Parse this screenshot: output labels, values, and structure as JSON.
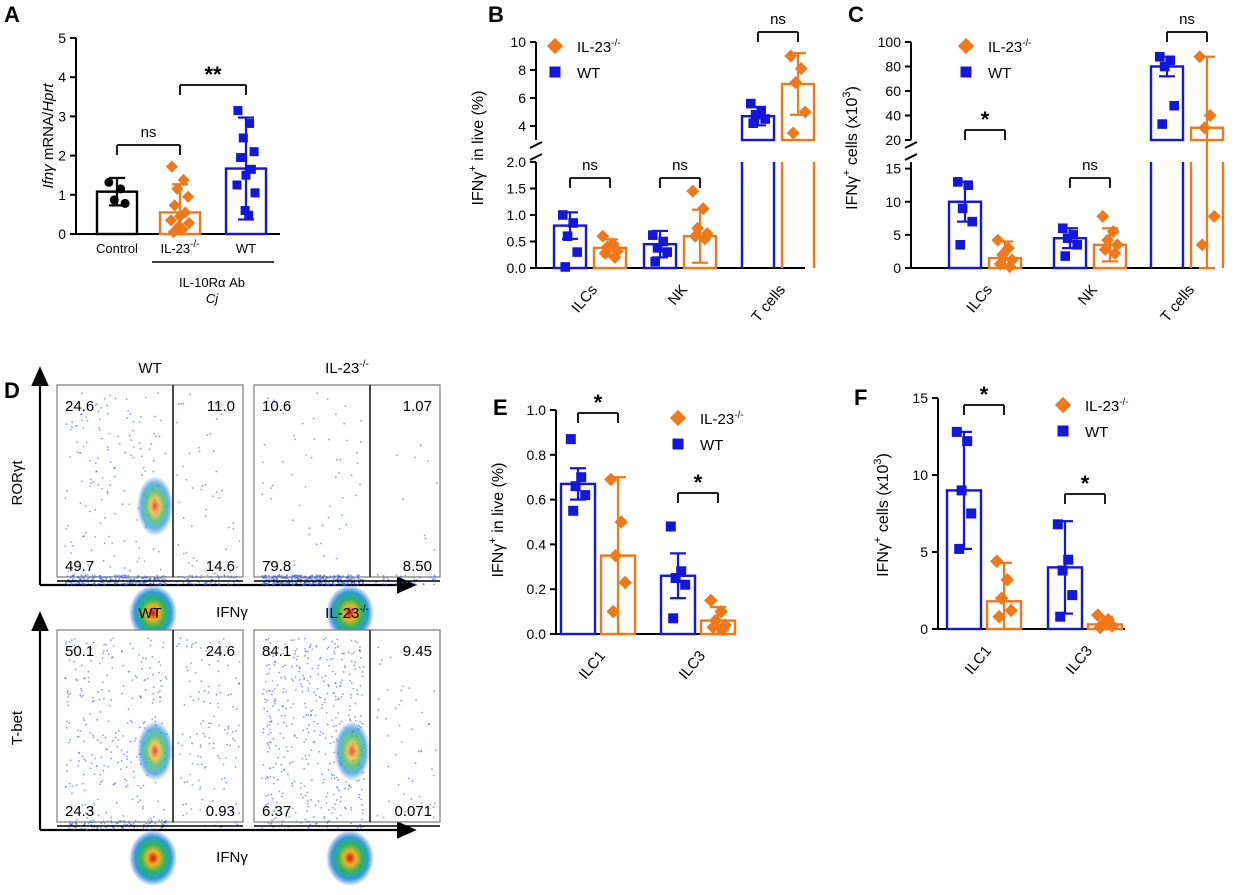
{
  "colors": {
    "wt": "#1515e0",
    "il23": "#f07818",
    "control": "#000000",
    "axis": "#000000",
    "gate": "#000000"
  },
  "symbols": {
    "il23": "diamond-icon",
    "wt": "square-icon",
    "control": "circle-icon"
  },
  "legend": {
    "il23": "IL-23",
    "il23_sup": "-/-",
    "wt": "WT"
  },
  "chart_data": [
    {
      "id": "A",
      "type": "bar",
      "panel_label": "A",
      "ylabel_italic1": "Ifnγ",
      "ylabel_mid": " mRNA/",
      "ylabel_italic2": "Hprt",
      "ylim": [
        0,
        5
      ],
      "yticks": [
        0,
        1,
        2,
        3,
        4,
        5
      ],
      "categories": [
        "Control",
        "IL-23",
        "WT"
      ],
      "category_sup": [
        "",
        "-/-",
        ""
      ],
      "group_label": "IL-10Rα Ab",
      "group_label2": "Cj",
      "bars": [
        {
          "name": "Control",
          "mean": 1.08,
          "sd": 0.35,
          "points": [
            1.32,
            1.15,
            0.87,
            0.78
          ]
        },
        {
          "name": "IL-23-/-",
          "mean": 0.55,
          "sd": 0.72,
          "points": [
            1.72,
            1.38,
            1.15,
            0.95,
            0.73,
            0.55,
            0.45,
            0.35,
            0.28,
            0.2,
            0.12,
            0.05
          ]
        },
        {
          "name": "WT",
          "mean": 1.67,
          "sd": 1.3,
          "points": [
            3.15,
            2.82,
            2.45,
            2.1,
            1.95,
            1.65,
            1.5,
            1.25,
            1.05,
            0.6,
            0.48
          ]
        }
      ],
      "significance": [
        {
          "from": 0,
          "to": 1,
          "label": "ns"
        },
        {
          "from": 1,
          "to": 2,
          "label": "**"
        }
      ]
    },
    {
      "id": "B",
      "type": "bar",
      "panel_label": "B",
      "ylabel": "IFNγ",
      "ylabel_sup": "+",
      "ylabel_rest": " in live (%)",
      "split_axis": true,
      "ylim_lower": [
        0,
        2
      ],
      "yticks_lower": [
        "0.0",
        "0.5",
        "1.0",
        "1.5",
        "2.0"
      ],
      "ylim_upper": [
        3,
        10
      ],
      "yticks_upper": [
        "4",
        "6",
        "8",
        "10"
      ],
      "categories": [
        "ILCs",
        "NK",
        "T cells"
      ],
      "series": [
        {
          "name": "WT",
          "means": [
            0.8,
            0.45,
            4.7
          ],
          "sds": [
            0.25,
            0.25,
            0.65
          ],
          "points": [
            [
              1.0,
              0.85,
              0.6,
              0.3,
              0.02
            ],
            [
              0.62,
              0.5,
              0.38,
              0.3,
              0.12
            ],
            [
              5.6,
              5.1,
              4.8,
              4.5,
              4.2
            ]
          ]
        },
        {
          "name": "IL-23-/-",
          "means": [
            0.38,
            0.6,
            7.0
          ],
          "sds": [
            0.16,
            0.5,
            2.2
          ],
          "points": [
            [
              0.6,
              0.45,
              0.4,
              0.32,
              0.28,
              0.2
            ],
            [
              1.45,
              1.12,
              0.75,
              0.65,
              0.6,
              0.55
            ],
            [
              9.0,
              8.1,
              7.1,
              5.0,
              3.5
            ]
          ]
        }
      ],
      "significance": [
        "ns",
        "ns",
        "ns"
      ]
    },
    {
      "id": "C",
      "type": "bar",
      "panel_label": "C",
      "ylabel": "IFNγ",
      "ylabel_sup": "+",
      "ylabel_rest": " cells (x10",
      "ylabel_exp": "3",
      "ylabel_close": ")",
      "split_axis": true,
      "ylim_lower": [
        0,
        16
      ],
      "yticks_lower": [
        "0",
        "5",
        "10",
        "15"
      ],
      "ylim_upper": [
        20,
        100
      ],
      "yticks_upper": [
        "20",
        "40",
        "60",
        "80",
        "100"
      ],
      "categories": [
        "ILCs",
        "NK",
        "T cells"
      ],
      "series": [
        {
          "name": "WT",
          "means": [
            10.0,
            4.5,
            80.0
          ],
          "sds": [
            3.0,
            1.5,
            8.0
          ],
          "points": [
            [
              13.0,
              12.5,
              9.0,
              7.0,
              3.5
            ],
            [
              6.0,
              5.0,
              4.5,
              3.5,
              1.8
            ],
            [
              88,
              85,
              80,
              48,
              33
            ]
          ]
        },
        {
          "name": "IL-23-/-",
          "means": [
            1.5,
            3.5,
            30.0
          ],
          "sds": [
            2.5,
            2.5,
            58.0
          ],
          "points": [
            [
              4.2,
              3.0,
              2.0,
              1.2,
              0.6,
              0.2
            ],
            [
              7.8,
              5.5,
              4.2,
              3.5,
              2.8,
              2.2
            ],
            [
              88,
              40,
              30,
              7.8,
              3.5
            ]
          ]
        }
      ],
      "significance": [
        "*",
        "ns",
        "ns"
      ]
    },
    {
      "id": "E",
      "type": "bar",
      "panel_label": "E",
      "ylabel": "IFNγ",
      "ylabel_sup": "+",
      "ylabel_rest": " in live (%)",
      "ylim": [
        0,
        1
      ],
      "yticks": [
        "0.0",
        "0.2",
        "0.4",
        "0.6",
        "0.8",
        "1.0"
      ],
      "categories": [
        "ILC1",
        "ILC3"
      ],
      "series": [
        {
          "name": "WT",
          "means": [
            0.67,
            0.26
          ],
          "sds": [
            0.07,
            0.1
          ],
          "points": [
            [
              0.87,
              0.7,
              0.66,
              0.62,
              0.55
            ],
            [
              0.48,
              0.28,
              0.25,
              0.22,
              0.07
            ]
          ]
        },
        {
          "name": "IL-23-/-",
          "means": [
            0.35,
            0.06
          ],
          "sds": [
            0.35,
            0.06
          ],
          "points": [
            [
              0.69,
              0.5,
              0.35,
              0.23,
              0.1
            ],
            [
              0.15,
              0.1,
              0.06,
              0.04,
              0.03,
              0.02
            ]
          ]
        }
      ],
      "significance": [
        "*",
        "*"
      ]
    },
    {
      "id": "F",
      "type": "bar",
      "panel_label": "F",
      "ylabel": "IFNγ",
      "ylabel_sup": "+",
      "ylabel_rest": " cells (x10",
      "ylabel_exp": "3",
      "ylabel_close": ")",
      "ylim": [
        0,
        15
      ],
      "yticks": [
        "0",
        "5",
        "10",
        "15"
      ],
      "categories": [
        "ILC1",
        "ILC3"
      ],
      "series": [
        {
          "name": "WT",
          "means": [
            9.0,
            4.0
          ],
          "sds": [
            3.8,
            3.0
          ],
          "points": [
            [
              12.8,
              12.2,
              9.0,
              7.5,
              5.2
            ],
            [
              6.8,
              4.5,
              3.8,
              2.2,
              0.8
            ]
          ]
        },
        {
          "name": "IL-23-/-",
          "means": [
            1.8,
            0.3
          ],
          "sds": [
            2.5,
            0.5
          ],
          "points": [
            [
              4.4,
              3.2,
              2.0,
              1.2,
              0.8
            ],
            [
              0.9,
              0.6,
              0.3,
              0.2,
              0.1
            ]
          ]
        }
      ],
      "significance": [
        "*",
        "*"
      ]
    },
    {
      "id": "D",
      "type": "flow-cytometry-quadrants",
      "panel_label": "D",
      "rows": [
        {
          "ylabel": "RORγt",
          "xlabel": "IFNγ",
          "plots": [
            {
              "title": "WT",
              "title_sup": "",
              "q": [
                "24.6",
                "11.0",
                "49.7",
                "14.6"
              ]
            },
            {
              "title": "IL-23",
              "title_sup": "-/-",
              "q": [
                "10.6",
                "1.07",
                "79.8",
                "8.50"
              ]
            }
          ]
        },
        {
          "ylabel": "T-bet",
          "xlabel": "IFNγ",
          "plots": [
            {
              "title": "WT",
              "title_sup": "",
              "q": [
                "50.1",
                "24.6",
                "24.3",
                "0.93"
              ]
            },
            {
              "title": "IL-23",
              "title_sup": "-/-",
              "q": [
                "84.1",
                "9.45",
                "6.37",
                "0.071"
              ]
            }
          ]
        }
      ]
    }
  ]
}
